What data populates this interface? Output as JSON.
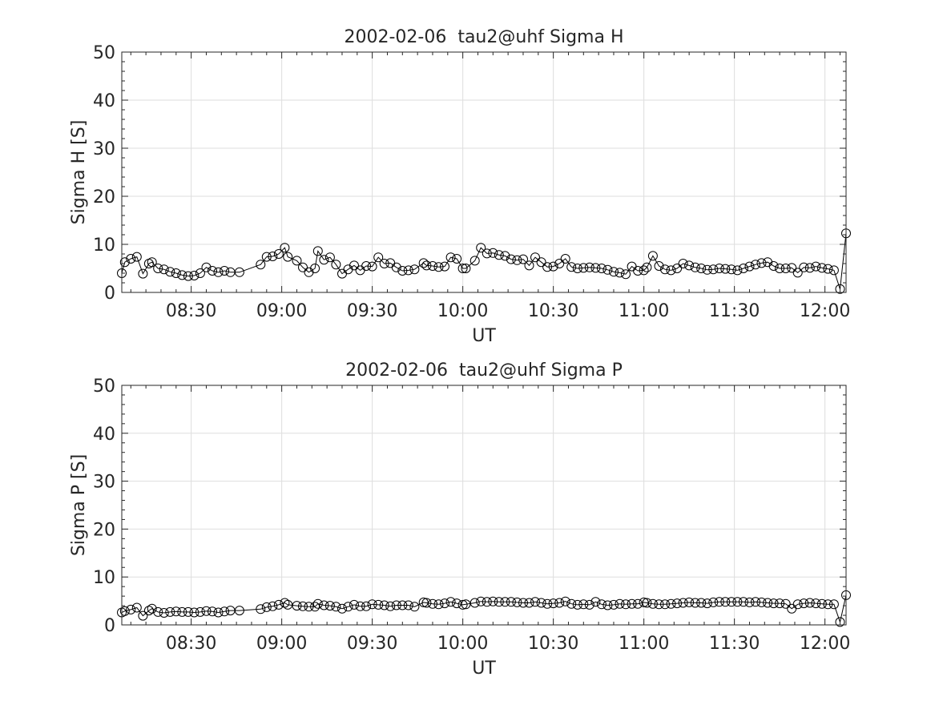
{
  "chart_data": [
    {
      "type": "line",
      "title": "2002-02-06  tau2@uhf Sigma H",
      "xlabel": "UT",
      "ylabel": "Sigma H [S]",
      "xlim": [
        "08:07",
        "12:07"
      ],
      "ylim": [
        0,
        50
      ],
      "yticks": [
        0,
        10,
        20,
        30,
        40,
        50
      ],
      "xticks": [
        "08:30",
        "09:00",
        "09:30",
        "10:00",
        "10:30",
        "11:00",
        "11:30",
        "12:00"
      ],
      "grid": true,
      "marker": "open-circle",
      "line_color": "#000000",
      "series": [
        {
          "x": [
            "08:07",
            "08:08",
            "08:10",
            "08:12",
            "08:14",
            "08:16",
            "08:17",
            "08:19",
            "08:21",
            "08:23",
            "08:25",
            "08:27",
            "08:29",
            "08:31",
            "08:33",
            "08:35",
            "08:37",
            "08:39",
            "08:41",
            "08:43",
            "08:46",
            "08:53",
            "08:55",
            "08:57",
            "08:59",
            "09:01",
            "09:02",
            "09:05",
            "09:07",
            "09:09",
            "09:11",
            "09:12",
            "09:14",
            "09:16",
            "09:18",
            "09:20",
            "09:22",
            "09:24",
            "09:26",
            "09:28",
            "09:30",
            "09:32",
            "09:34",
            "09:36",
            "09:38",
            "09:40",
            "09:42",
            "09:44",
            "09:47",
            "09:48",
            "09:50",
            "09:52",
            "09:54",
            "09:56",
            "09:58",
            "10:00",
            "10:01",
            "10:04",
            "10:06",
            "10:08",
            "10:10",
            "10:12",
            "10:14",
            "10:16",
            "10:18",
            "10:20",
            "10:22",
            "10:24",
            "10:26",
            "10:28",
            "10:30",
            "10:32",
            "10:34",
            "10:36",
            "10:38",
            "10:40",
            "10:42",
            "10:44",
            "10:46",
            "10:48",
            "10:50",
            "10:52",
            "10:54",
            "10:56",
            "10:58",
            "11:00",
            "11:01",
            "11:03",
            "11:05",
            "11:07",
            "11:09",
            "11:11",
            "11:13",
            "11:15",
            "11:17",
            "11:19",
            "11:21",
            "11:23",
            "11:25",
            "11:27",
            "11:29",
            "11:31",
            "11:33",
            "11:35",
            "11:37",
            "11:39",
            "11:41",
            "11:43",
            "11:45",
            "11:47",
            "11:49",
            "11:51",
            "11:53",
            "11:55",
            "11:57",
            "11:59",
            "12:01",
            "12:03",
            "12:05",
            "12:07"
          ],
          "y": [
            4.0,
            6.3,
            7.0,
            7.4,
            3.9,
            6.0,
            6.3,
            5.0,
            4.8,
            4.3,
            4.0,
            3.6,
            3.4,
            3.5,
            4.0,
            5.2,
            4.5,
            4.2,
            4.5,
            4.2,
            4.2,
            5.8,
            7.4,
            7.5,
            8.0,
            9.3,
            7.4,
            6.6,
            5.2,
            4.2,
            5.0,
            8.6,
            6.8,
            7.3,
            5.8,
            3.9,
            4.8,
            5.6,
            4.6,
            5.5,
            5.4,
            7.3,
            6.0,
            6.1,
            5.2,
            4.5,
            4.6,
            4.8,
            6.1,
            5.6,
            5.5,
            5.3,
            5.4,
            7.3,
            7.0,
            5.0,
            5.0,
            6.6,
            9.3,
            8.1,
            8.2,
            7.8,
            7.6,
            6.9,
            6.7,
            6.9,
            5.6,
            7.3,
            6.3,
            5.3,
            5.4,
            6.0,
            7.0,
            5.3,
            5.0,
            5.1,
            5.2,
            5.1,
            5.0,
            4.7,
            4.3,
            4.1,
            3.8,
            5.4,
            4.5,
            4.6,
            5.2,
            7.6,
            5.5,
            4.8,
            4.6,
            5.0,
            6.0,
            5.6,
            5.2,
            5.0,
            4.7,
            4.8,
            5.0,
            4.9,
            4.8,
            4.6,
            5.0,
            5.4,
            5.8,
            6.1,
            6.3,
            5.5,
            5.0,
            5.0,
            5.1,
            4.1,
            5.2,
            5.1,
            5.4,
            5.1,
            4.9,
            4.6,
            0.7,
            12.3
          ]
        }
      ]
    },
    {
      "type": "line",
      "title": "2002-02-06  tau2@uhf Sigma P",
      "xlabel": "UT",
      "ylabel": "Sigma P [S]",
      "xlim": [
        "08:07",
        "12:07"
      ],
      "ylim": [
        0,
        50
      ],
      "yticks": [
        0,
        10,
        20,
        30,
        40,
        50
      ],
      "xticks": [
        "08:30",
        "09:00",
        "09:30",
        "10:00",
        "10:30",
        "11:00",
        "11:30",
        "12:00"
      ],
      "grid": true,
      "marker": "open-circle",
      "line_color": "#000000",
      "series": [
        {
          "x": [
            "08:07",
            "08:08",
            "08:10",
            "08:12",
            "08:14",
            "08:16",
            "08:17",
            "08:19",
            "08:21",
            "08:23",
            "08:25",
            "08:27",
            "08:29",
            "08:31",
            "08:33",
            "08:35",
            "08:37",
            "08:39",
            "08:41",
            "08:43",
            "08:46",
            "08:53",
            "08:55",
            "08:57",
            "08:59",
            "09:01",
            "09:02",
            "09:05",
            "09:07",
            "09:09",
            "09:11",
            "09:12",
            "09:14",
            "09:16",
            "09:18",
            "09:20",
            "09:22",
            "09:24",
            "09:26",
            "09:28",
            "09:30",
            "09:32",
            "09:34",
            "09:36",
            "09:38",
            "09:40",
            "09:42",
            "09:44",
            "09:47",
            "09:48",
            "09:50",
            "09:52",
            "09:54",
            "09:56",
            "09:58",
            "10:00",
            "10:01",
            "10:04",
            "10:06",
            "10:08",
            "10:10",
            "10:12",
            "10:14",
            "10:16",
            "10:18",
            "10:20",
            "10:22",
            "10:24",
            "10:26",
            "10:28",
            "10:30",
            "10:32",
            "10:34",
            "10:36",
            "10:38",
            "10:40",
            "10:42",
            "10:44",
            "10:46",
            "10:48",
            "10:50",
            "10:52",
            "10:54",
            "10:56",
            "10:58",
            "11:00",
            "11:01",
            "11:03",
            "11:05",
            "11:07",
            "11:09",
            "11:11",
            "11:13",
            "11:15",
            "11:17",
            "11:19",
            "11:21",
            "11:23",
            "11:25",
            "11:27",
            "11:29",
            "11:31",
            "11:33",
            "11:35",
            "11:37",
            "11:39",
            "11:41",
            "11:43",
            "11:45",
            "11:47",
            "11:49",
            "11:51",
            "11:53",
            "11:55",
            "11:57",
            "11:59",
            "12:01",
            "12:03",
            "12:05",
            "12:07"
          ],
          "y": [
            2.6,
            2.9,
            3.2,
            3.6,
            1.9,
            3.0,
            3.4,
            2.7,
            2.5,
            2.7,
            2.8,
            2.7,
            2.7,
            2.6,
            2.7,
            2.9,
            2.8,
            2.6,
            2.8,
            3.0,
            3.0,
            3.3,
            3.7,
            3.9,
            4.2,
            4.6,
            4.2,
            4.0,
            3.9,
            3.8,
            3.8,
            4.4,
            4.1,
            4.0,
            3.8,
            3.4,
            3.8,
            4.2,
            3.9,
            3.9,
            4.3,
            4.2,
            4.1,
            3.9,
            4.1,
            4.1,
            4.1,
            3.8,
            4.7,
            4.6,
            4.4,
            4.3,
            4.5,
            4.8,
            4.5,
            4.2,
            4.3,
            4.6,
            4.9,
            4.8,
            4.9,
            4.8,
            4.8,
            4.8,
            4.7,
            4.6,
            4.6,
            4.8,
            4.6,
            4.4,
            4.5,
            4.6,
            4.9,
            4.4,
            4.2,
            4.3,
            4.2,
            4.8,
            4.3,
            4.1,
            4.2,
            4.4,
            4.3,
            4.4,
            4.4,
            4.7,
            4.6,
            4.4,
            4.3,
            4.3,
            4.4,
            4.5,
            4.6,
            4.7,
            4.6,
            4.6,
            4.5,
            4.7,
            4.8,
            4.8,
            4.8,
            4.8,
            4.8,
            4.7,
            4.8,
            4.7,
            4.6,
            4.5,
            4.5,
            4.4,
            3.4,
            4.3,
            4.5,
            4.6,
            4.5,
            4.4,
            4.3,
            4.3,
            0.6,
            6.2
          ]
        }
      ]
    }
  ]
}
